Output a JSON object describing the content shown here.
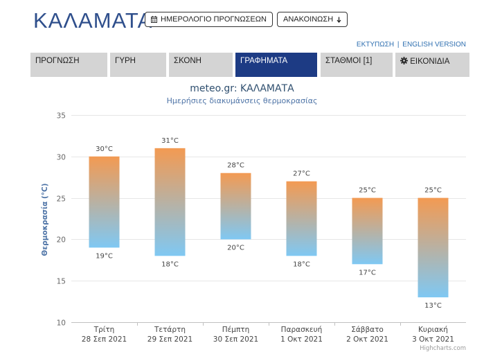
{
  "header": {
    "city": "ΚΑΛΑΜΑΤΑ",
    "calendar_button": "ΗΜΕΡΟΛΟΓΙΟ ΠΡΟΓΝΩΣΕΩΝ",
    "announce_button": "ΑΝΑΚΟΙΝΩΣΗ",
    "announce_icon": "arrow-down-icon",
    "calendar_icon": "calendar-icon",
    "print_link": "ΕΚΤΥΠΩΣΗ",
    "separator": "|",
    "english_link": "ENGLISH VERSION"
  },
  "tabs": [
    {
      "label": "ΠΡΟΓΝΩΣΗ"
    },
    {
      "label": "ΓΥΡΗ"
    },
    {
      "label": "ΣΚΟΝΗ"
    },
    {
      "label": "ΓΡΑΦΗΜΑΤΑ"
    },
    {
      "label": "ΣΤΑΘΜΟΙ [1]"
    },
    {
      "label": "ΕΙΚΟΝΙΔΙΑ",
      "icon": "gear-icon"
    }
  ],
  "active_tab": "ΓΡΑΦΗΜΑΤΑ",
  "colors": {
    "brand": "#2f4f8c",
    "active_tab": "#1d3b84",
    "bar_top": "#f39a52",
    "bar_bottom": "#7fc8f3"
  },
  "chart_data": {
    "type": "bar",
    "title": "meteo.gr: ΚΑΛΑΜΑΤΑ",
    "subtitle": "Ημερήσιες διακυμάνσεις θερμοκρασίας",
    "ylabel": "Θερμοκρασία (°C)",
    "xlabel": "",
    "ylim": [
      10,
      35
    ],
    "yticks": [
      "10",
      "15",
      "20",
      "25",
      "30",
      "35"
    ],
    "grid": true,
    "unit_suffix": "°C",
    "categories": [
      {
        "day": "Τρίτη",
        "date": "28 Σεπ 2021"
      },
      {
        "day": "Τετάρτη",
        "date": "29 Σεπ 2021"
      },
      {
        "day": "Πέμπτη",
        "date": "30 Σεπ 2021"
      },
      {
        "day": "Παρασκευή",
        "date": "1 Οκτ 2021"
      },
      {
        "day": "Σάββατο",
        "date": "2 Οκτ 2021"
      },
      {
        "day": "Κυριακή",
        "date": "3 Οκτ 2021"
      }
    ],
    "series": [
      {
        "name": "",
        "high": [
          30,
          31,
          28,
          27,
          25,
          25
        ],
        "low": [
          19,
          18,
          20,
          18,
          17,
          13
        ]
      }
    ],
    "high_labels": [
      "30°C",
      "31°C",
      "28°C",
      "27°C",
      "25°C",
      "25°C"
    ],
    "low_labels": [
      "19°C",
      "18°C",
      "20°C",
      "18°C",
      "17°C",
      "13°C"
    ]
  },
  "credits": "Highcharts.com"
}
